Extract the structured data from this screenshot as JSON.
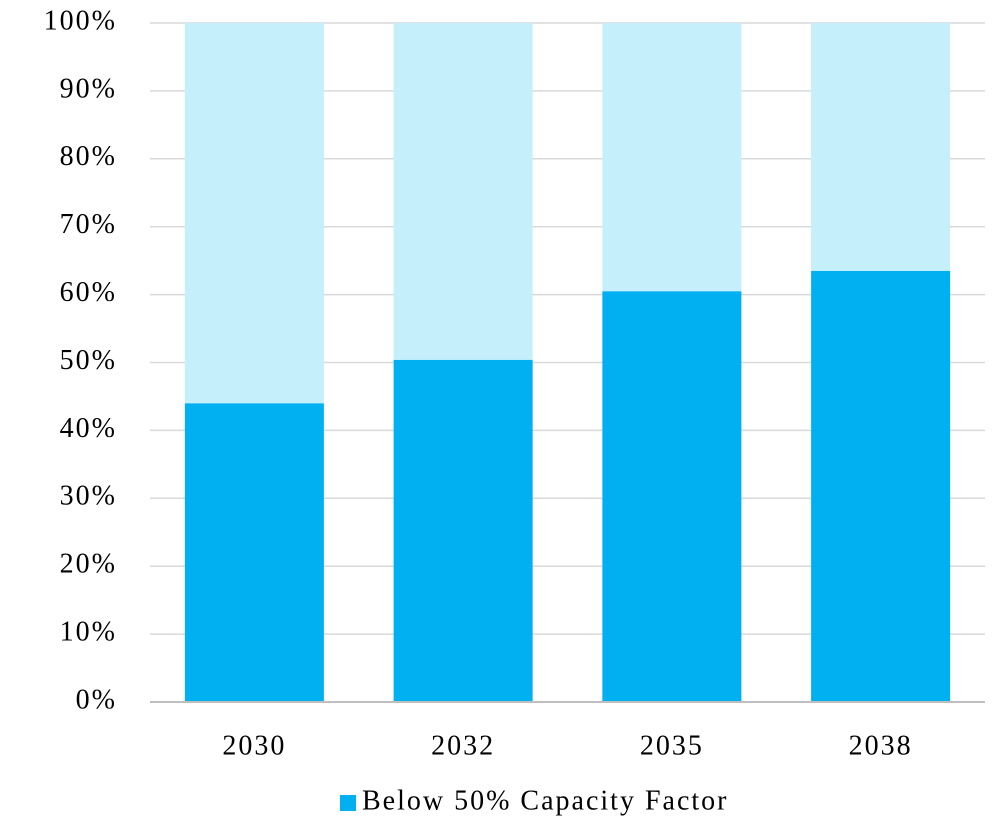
{
  "chart_data": {
    "type": "stacked_bar",
    "categories": [
      "2030",
      "2032",
      "2035",
      "2038"
    ],
    "series": [
      {
        "name": "Below 50% Capacity Factor",
        "color": "#00b0f0",
        "values": [
          44,
          50.4,
          60.5,
          63.5
        ]
      },
      {
        "color": "#c5effb",
        "values": [
          56,
          49.6,
          39.5,
          36.5
        ]
      }
    ],
    "ylim": [
      0,
      100
    ],
    "yticks": [
      {
        "value": 0,
        "label": "0%"
      },
      {
        "value": 10,
        "label": "10%"
      },
      {
        "value": 20,
        "label": "20%"
      },
      {
        "value": 30,
        "label": "30%"
      },
      {
        "value": 40,
        "label": "40%"
      },
      {
        "value": 50,
        "label": "50%"
      },
      {
        "value": 60,
        "label": "60%"
      },
      {
        "value": 70,
        "label": "70%"
      },
      {
        "value": 80,
        "label": "80%"
      },
      {
        "value": 90,
        "label": "90%"
      },
      {
        "value": 100,
        "label": "100%"
      }
    ],
    "grid": true,
    "legend": "bottom"
  }
}
